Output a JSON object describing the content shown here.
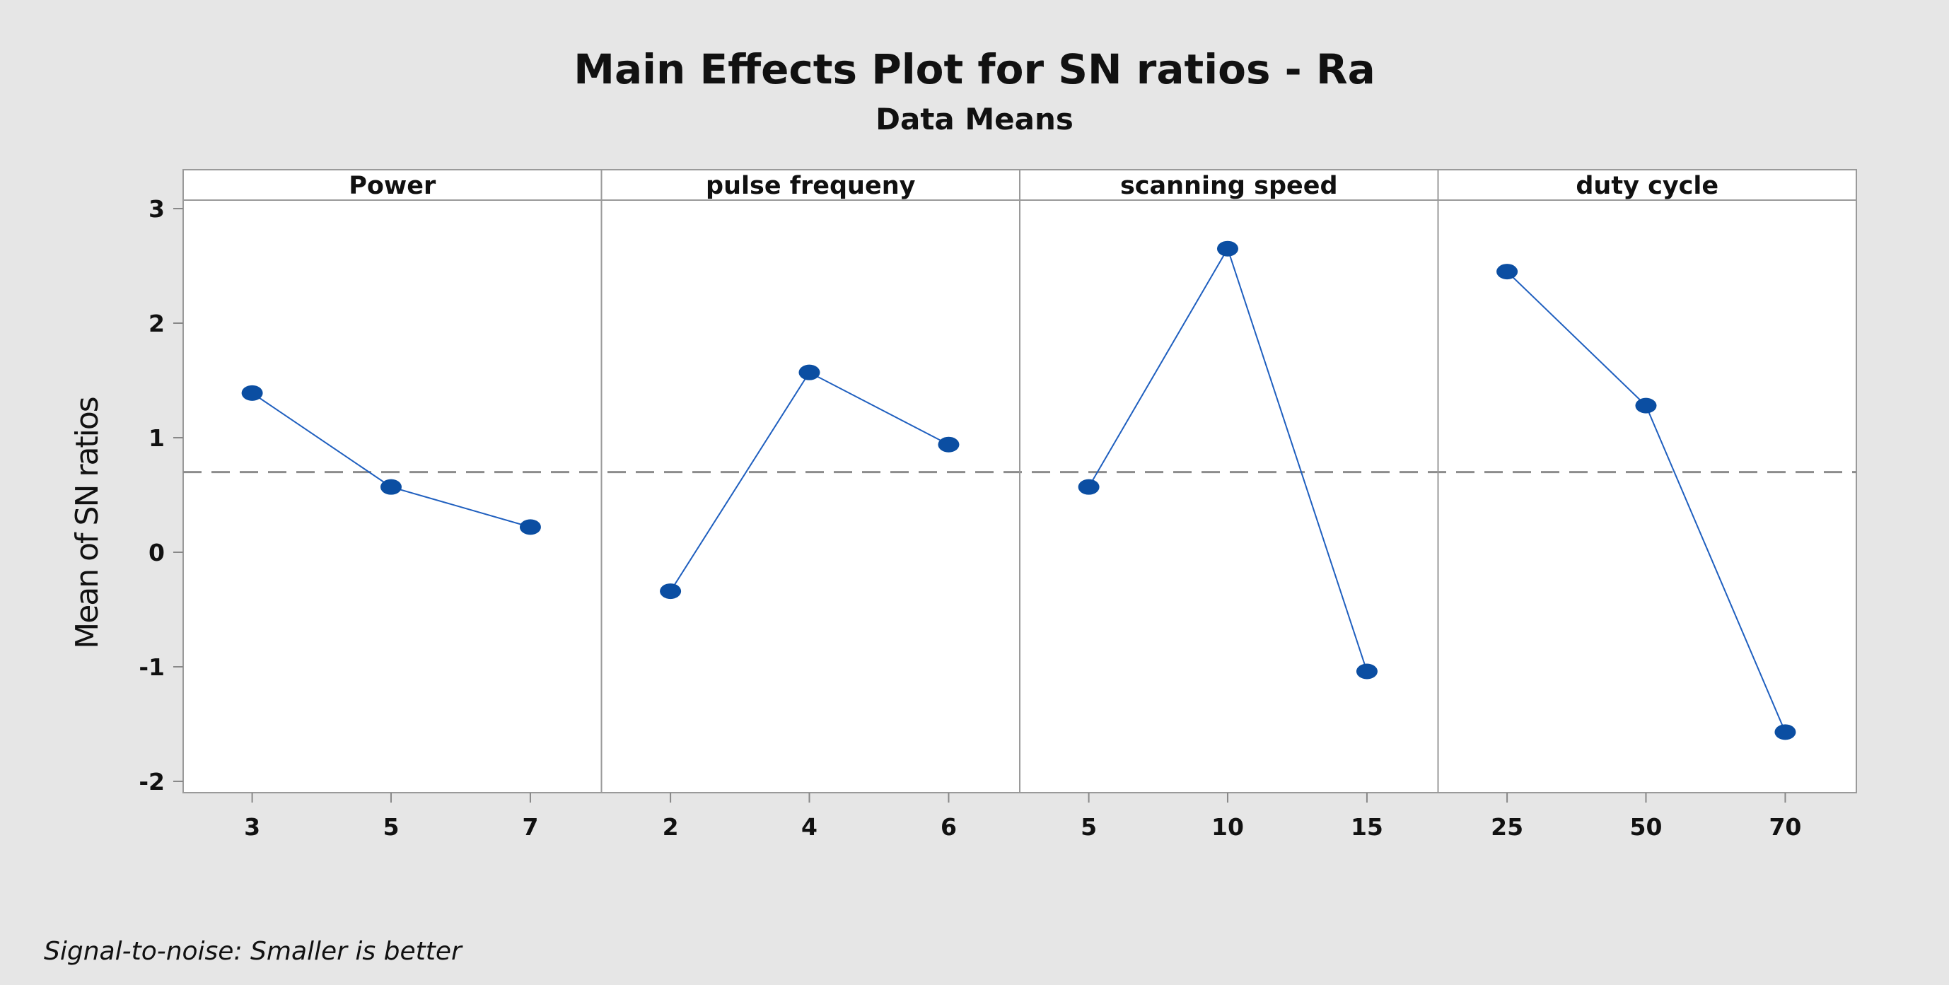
{
  "chart_data": {
    "type": "line",
    "title": "Main Effects Plot for SN ratios - Ra",
    "subtitle": "Data Means",
    "ylabel": "Mean of SN ratios",
    "ylim": [
      -2.1,
      3.25
    ],
    "yticks": [
      "-2",
      "-1",
      "0",
      "1",
      "2",
      "3"
    ],
    "mean_line": 0.7,
    "footnote": "Signal-to-noise: Smaller is better",
    "series_color": "#1f5fbf",
    "marker_color": "#0b4ea2",
    "panels": [
      {
        "name": "Power",
        "categories": [
          "3",
          "5",
          "7"
        ],
        "values": [
          1.39,
          0.57,
          0.22
        ]
      },
      {
        "name": "pulse frequeny",
        "categories": [
          "2",
          "4",
          "6"
        ],
        "values": [
          -0.34,
          1.57,
          0.94
        ]
      },
      {
        "name": "scanning speed",
        "categories": [
          "5",
          "10",
          "15"
        ],
        "values": [
          0.57,
          2.65,
          -1.04
        ]
      },
      {
        "name": "duty cycle",
        "categories": [
          "25",
          "50",
          "70"
        ],
        "values": [
          2.45,
          1.28,
          -1.57
        ]
      }
    ]
  }
}
